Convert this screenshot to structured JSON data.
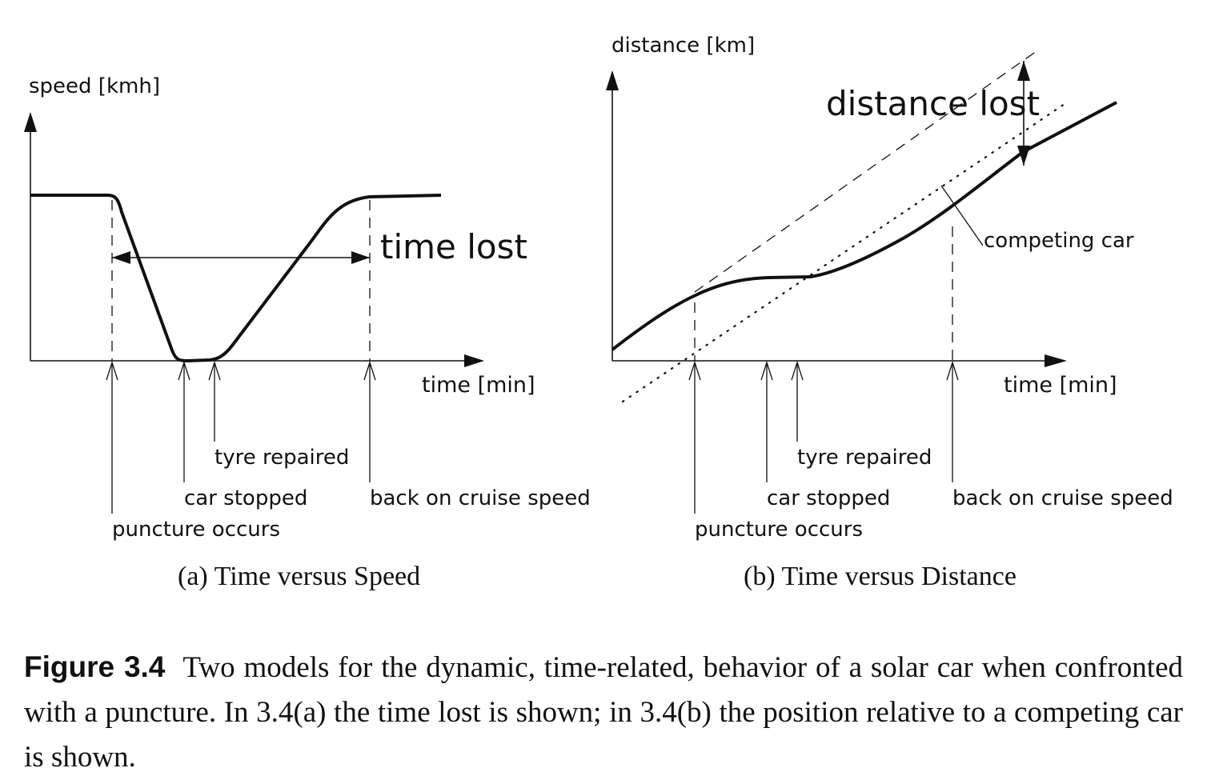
{
  "panel_a": {
    "y_axis_label": "speed [kmh]",
    "x_axis_label": "time [min]",
    "annotation": "time lost",
    "events": [
      "puncture occurs",
      "car stopped",
      "tyre repaired",
      "back on cruise speed"
    ],
    "subcaption": "(a) Time versus Speed"
  },
  "panel_b": {
    "y_axis_label": "distance [km]",
    "x_axis_label": "time [min]",
    "annotation": "distance lost",
    "competitor_label": "competing car",
    "events": [
      "puncture occurs",
      "car stopped",
      "tyre repaired",
      "back on cruise speed"
    ],
    "subcaption": "(b) Time versus Distance"
  },
  "caption": {
    "label": "Figure 3.4",
    "text": "Two models for the dynamic, time-related, behavior of a solar car when confronted with a puncture.  In 3.4(a) the time lost is shown; in 3.4(b) the position relative to a competing car is shown."
  }
}
